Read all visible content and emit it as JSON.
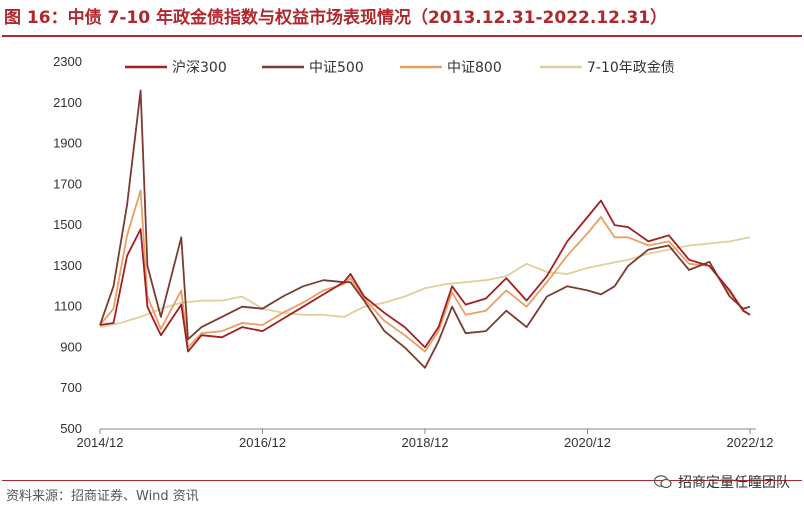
{
  "figure": {
    "title": "图 16：中债 7-10 年政金债指数与权益市场表现情况（2013.12.31-2022.12.31）",
    "source": "资料来源：招商证券、Wind 资讯",
    "brand": "招商定量任瞳团队"
  },
  "chart_data": {
    "type": "line",
    "title": "图 16：中债 7-10 年政金债指数与权益市场表现情况（2013.12.31-2022.12.31）",
    "xlabel": "",
    "ylabel": "",
    "xlim": [
      "2014/12",
      "2022/12"
    ],
    "ylim": [
      500,
      2300
    ],
    "y_ticks": [
      500,
      700,
      900,
      1100,
      1300,
      1500,
      1700,
      1900,
      2100,
      2300
    ],
    "x_ticks": [
      "2014/12",
      "2016/12",
      "2018/12",
      "2020/12",
      "2022/12"
    ],
    "grid": false,
    "legend_position": "top",
    "series": [
      {
        "name": "沪深300",
        "color": "#a51d23",
        "x": [
          "2014/12",
          "2015/02",
          "2015/04",
          "2015/06",
          "2015/07",
          "2015/09",
          "2015/12",
          "2016/01",
          "2016/03",
          "2016/06",
          "2016/09",
          "2016/12",
          "2017/03",
          "2017/06",
          "2017/09",
          "2017/12",
          "2018/01",
          "2018/03",
          "2018/06",
          "2018/09",
          "2018/12",
          "2019/02",
          "2019/04",
          "2019/06",
          "2019/09",
          "2019/12",
          "2020/03",
          "2020/06",
          "2020/09",
          "2020/12",
          "2021/02",
          "2021/04",
          "2021/06",
          "2021/09",
          "2021/12",
          "2022/03",
          "2022/06",
          "2022/09",
          "2022/11",
          "2022/12"
        ],
        "values": [
          1010,
          1020,
          1350,
          1480,
          1100,
          960,
          1110,
          880,
          960,
          950,
          1000,
          980,
          1040,
          1100,
          1160,
          1220,
          1260,
          1150,
          1070,
          1000,
          900,
          1000,
          1200,
          1110,
          1140,
          1240,
          1130,
          1250,
          1420,
          1540,
          1620,
          1500,
          1490,
          1420,
          1450,
          1330,
          1300,
          1180,
          1080,
          1060
        ]
      },
      {
        "name": "中证500",
        "color": "#7b3b32",
        "x": [
          "2014/12",
          "2015/02",
          "2015/04",
          "2015/06",
          "2015/07",
          "2015/09",
          "2015/12",
          "2016/01",
          "2016/03",
          "2016/06",
          "2016/09",
          "2016/12",
          "2017/03",
          "2017/06",
          "2017/09",
          "2017/12",
          "2018/01",
          "2018/03",
          "2018/06",
          "2018/09",
          "2018/12",
          "2019/02",
          "2019/04",
          "2019/06",
          "2019/09",
          "2019/12",
          "2020/03",
          "2020/06",
          "2020/09",
          "2020/12",
          "2021/02",
          "2021/04",
          "2021/06",
          "2021/09",
          "2021/12",
          "2022/03",
          "2022/06",
          "2022/09",
          "2022/11",
          "2022/12"
        ],
        "values": [
          1010,
          1200,
          1600,
          2160,
          1300,
          1050,
          1440,
          940,
          1000,
          1050,
          1100,
          1090,
          1150,
          1200,
          1230,
          1220,
          1220,
          1130,
          980,
          900,
          800,
          930,
          1100,
          970,
          980,
          1080,
          1000,
          1150,
          1200,
          1180,
          1160,
          1200,
          1300,
          1380,
          1400,
          1280,
          1320,
          1150,
          1090,
          1100
        ]
      },
      {
        "name": "中证800",
        "color": "#e8a061",
        "x": [
          "2014/12",
          "2015/02",
          "2015/04",
          "2015/06",
          "2015/07",
          "2015/09",
          "2015/12",
          "2016/01",
          "2016/03",
          "2016/06",
          "2016/09",
          "2016/12",
          "2017/03",
          "2017/06",
          "2017/09",
          "2017/12",
          "2018/01",
          "2018/03",
          "2018/06",
          "2018/09",
          "2018/12",
          "2019/02",
          "2019/04",
          "2019/06",
          "2019/09",
          "2019/12",
          "2020/03",
          "2020/06",
          "2020/09",
          "2020/12",
          "2021/02",
          "2021/04",
          "2021/06",
          "2021/09",
          "2021/12",
          "2022/03",
          "2022/06",
          "2022/09",
          "2022/11",
          "2022/12"
        ],
        "values": [
          1010,
          1090,
          1450,
          1670,
          1150,
          990,
          1180,
          900,
          970,
          980,
          1020,
          1010,
          1070,
          1120,
          1180,
          1210,
          1240,
          1140,
          1030,
          960,
          880,
          980,
          1170,
          1060,
          1080,
          1180,
          1100,
          1220,
          1350,
          1460,
          1540,
          1440,
          1440,
          1400,
          1420,
          1310,
          1300,
          1170,
          1080,
          1060
        ]
      },
      {
        "name": "7-10年政金债",
        "color": "#ddd19a",
        "x": [
          "2014/12",
          "2015/03",
          "2015/06",
          "2015/09",
          "2015/12",
          "2016/03",
          "2016/06",
          "2016/09",
          "2016/12",
          "2017/03",
          "2017/06",
          "2017/09",
          "2017/12",
          "2018/03",
          "2018/06",
          "2018/09",
          "2018/12",
          "2019/03",
          "2019/06",
          "2019/09",
          "2019/12",
          "2020/03",
          "2020/06",
          "2020/09",
          "2020/12",
          "2021/03",
          "2021/06",
          "2021/09",
          "2021/12",
          "2022/03",
          "2022/06",
          "2022/09",
          "2022/12"
        ],
        "values": [
          1000,
          1020,
          1050,
          1090,
          1120,
          1130,
          1130,
          1150,
          1090,
          1070,
          1060,
          1060,
          1050,
          1100,
          1120,
          1150,
          1190,
          1210,
          1220,
          1230,
          1250,
          1310,
          1270,
          1260,
          1290,
          1310,
          1330,
          1360,
          1380,
          1400,
          1410,
          1420,
          1440
        ]
      }
    ]
  }
}
